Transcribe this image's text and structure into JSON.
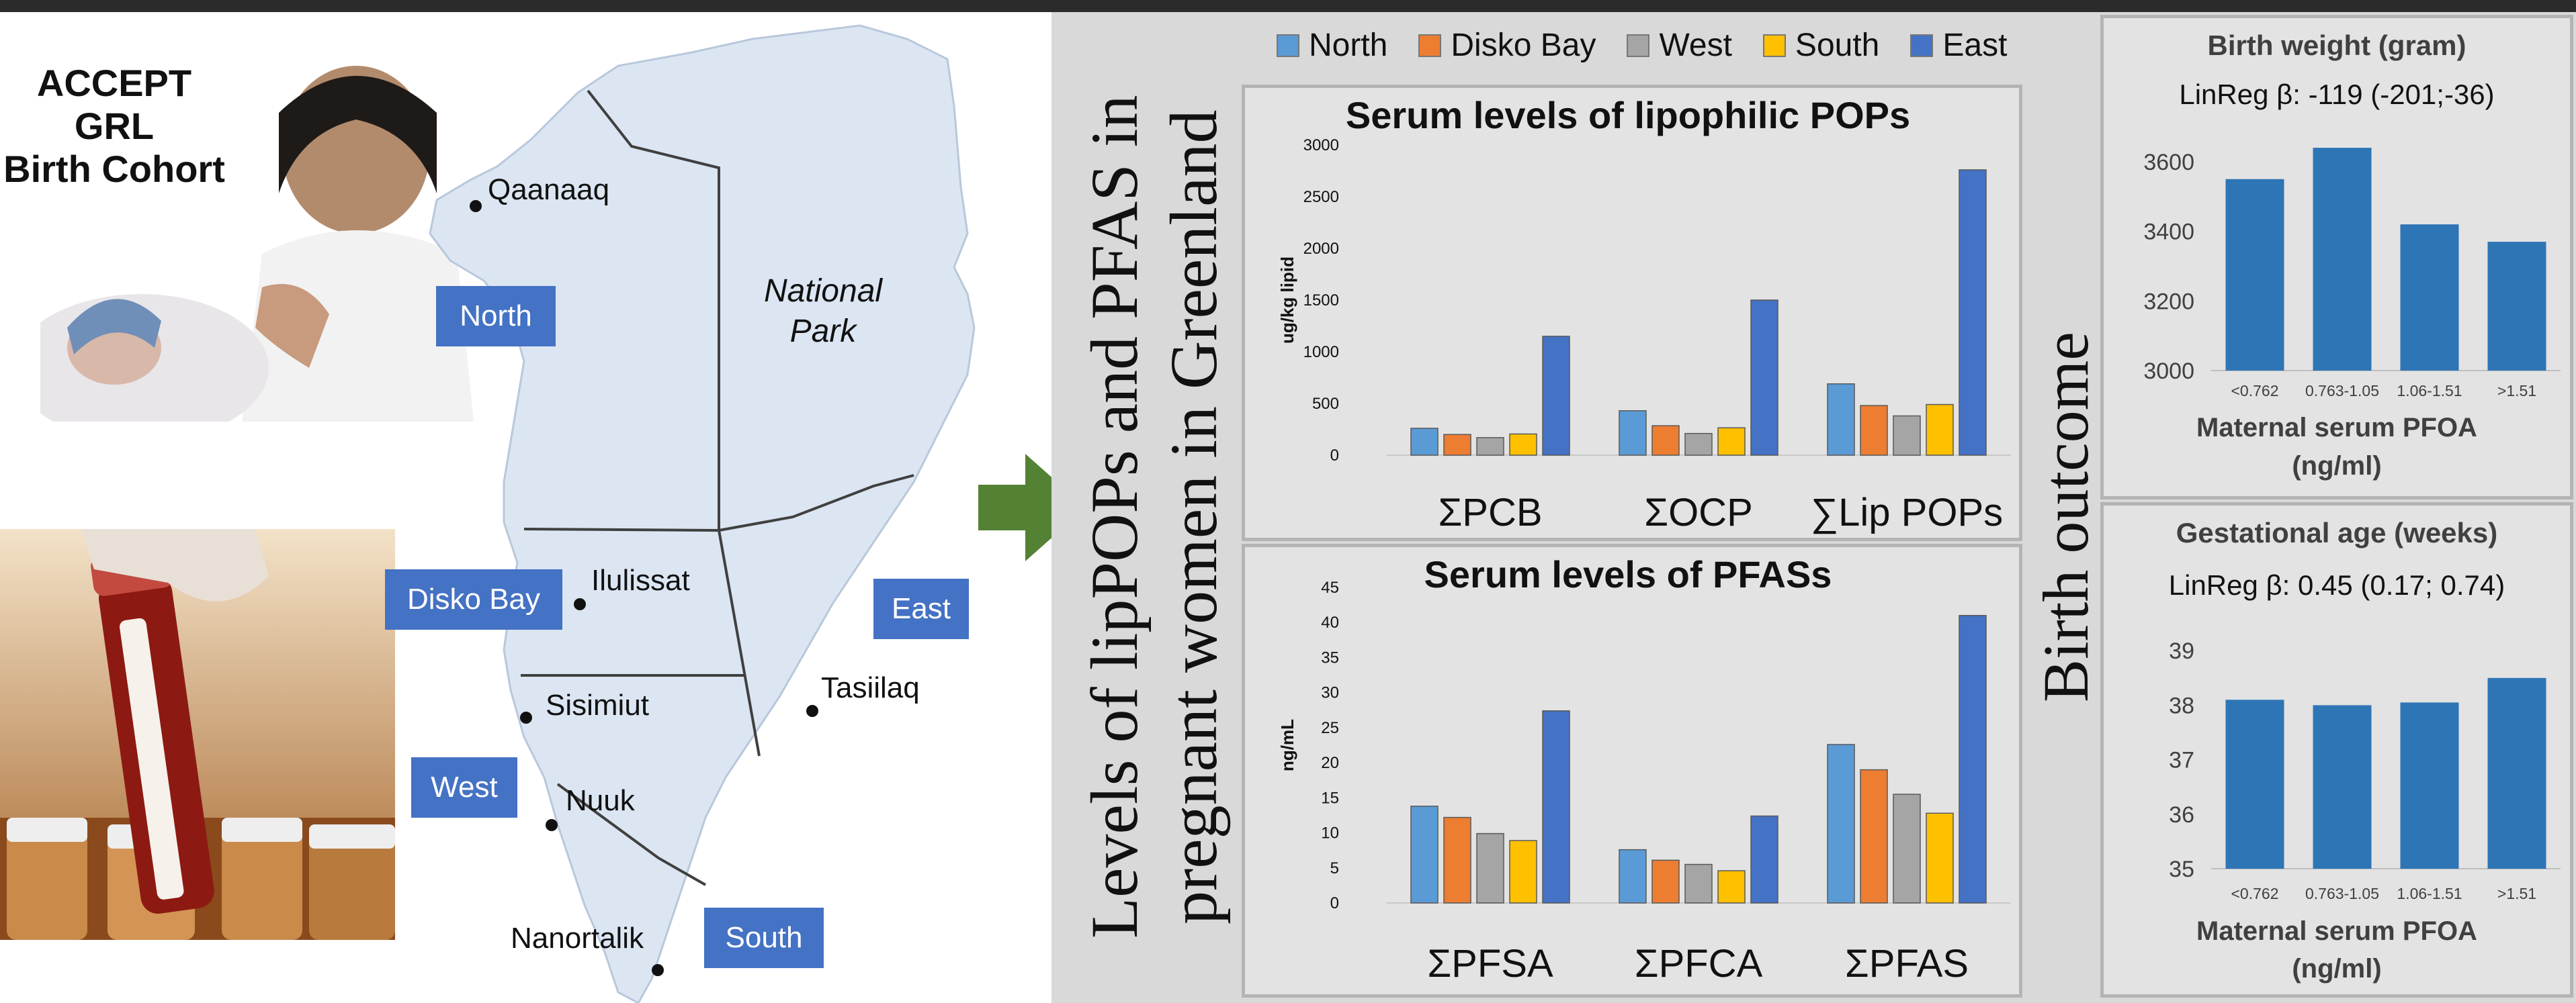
{
  "cohort": {
    "line1": "ACCEPT",
    "line2": "GRL",
    "line3": "Birth Cohort"
  },
  "map": {
    "regions": {
      "north": "North",
      "disko": "Disko Bay",
      "west": "West",
      "south": "South",
      "east": "East"
    },
    "towns": {
      "qaanaaq": "Qaanaaq",
      "ilulissat": "Ilulissat",
      "sisimiut": "Sisimiut",
      "nuuk": "Nuuk",
      "nanortalik": "Nanortalik",
      "tasiilaq": "Tasiilaq"
    },
    "national_park_1": "National",
    "national_park_2": "Park"
  },
  "colors": {
    "north": "#5b9bd5",
    "disko": "#ed7d31",
    "west": "#a5a5a5",
    "south": "#ffc000",
    "east": "#4472c4",
    "outcome": "#2e75b6",
    "arrow": "#548235"
  },
  "levels_title": {
    "line1": "Levels of lipPOPs and PFAS in",
    "line2": "pregnant women in Greenland"
  },
  "legend": [
    "North",
    "Disko Bay",
    "West",
    "South",
    "East"
  ],
  "birth_outcome_title": "Birth outcome",
  "chart_data": [
    {
      "type": "bar",
      "title": "Serum levels of lipophilic POPs",
      "ylabel": "ug/kg lipid",
      "categories": [
        "ΣPCB",
        "ΣOCP",
        "∑Lip POPs"
      ],
      "ylim": [
        0,
        3000
      ],
      "yticks": [
        "0",
        "500",
        "1000",
        "1500",
        "2000",
        "2500",
        "3000"
      ],
      "series": [
        {
          "name": "North",
          "values": [
            260,
            430,
            690
          ]
        },
        {
          "name": "Disko Bay",
          "values": [
            200,
            285,
            480
          ]
        },
        {
          "name": "West",
          "values": [
            170,
            210,
            380
          ]
        },
        {
          "name": "South",
          "values": [
            205,
            265,
            490
          ]
        },
        {
          "name": "East",
          "values": [
            1150,
            1500,
            2760
          ]
        }
      ]
    },
    {
      "type": "bar",
      "title": "Serum levels of PFASs",
      "ylabel": "ng/mL",
      "categories": [
        "ΣPFSA",
        "ΣPFCA",
        "ΣPFAS"
      ],
      "ylim": [
        0,
        45
      ],
      "yticks": [
        "0",
        "5",
        "10",
        "15",
        "20",
        "25",
        "30",
        "35",
        "40",
        "45"
      ],
      "series": [
        {
          "name": "North",
          "values": [
            13.8,
            7.6,
            22.6
          ]
        },
        {
          "name": "Disko Bay",
          "values": [
            12.2,
            6.1,
            19
          ]
        },
        {
          "name": "West",
          "values": [
            9.9,
            5.5,
            15.5
          ]
        },
        {
          "name": "South",
          "values": [
            8.9,
            4.6,
            12.8
          ]
        },
        {
          "name": "East",
          "values": [
            27.4,
            12.4,
            41
          ]
        }
      ]
    },
    {
      "type": "bar",
      "title": "Birth weight (gram)",
      "subtitle": "LinReg β: -119 (-201;-36)",
      "xlabel_1": "Maternal serum PFOA",
      "xlabel_2": "(ng/ml)",
      "categories": [
        "<0.762",
        "0.763-1.05",
        "1.06-1.51",
        ">1.51"
      ],
      "values": [
        3550,
        3640,
        3420,
        3370
      ],
      "ylim": [
        3000,
        3700
      ],
      "yticks": [
        "3000",
        "3200",
        "3400",
        "3600"
      ]
    },
    {
      "type": "bar",
      "title": "Gestational age (weeks)",
      "subtitle": "LinReg β: 0.45 (0.17; 0.74)",
      "xlabel_1": "Maternal serum PFOA",
      "xlabel_2": "(ng/ml)",
      "categories": [
        "<0.762",
        "0.763-1.05",
        "1.06-1.51",
        ">1.51"
      ],
      "values": [
        38.1,
        38.0,
        38.05,
        38.5
      ],
      "ylim": [
        35,
        39.2
      ],
      "yticks": [
        "35",
        "36",
        "37",
        "38",
        "39"
      ]
    }
  ]
}
